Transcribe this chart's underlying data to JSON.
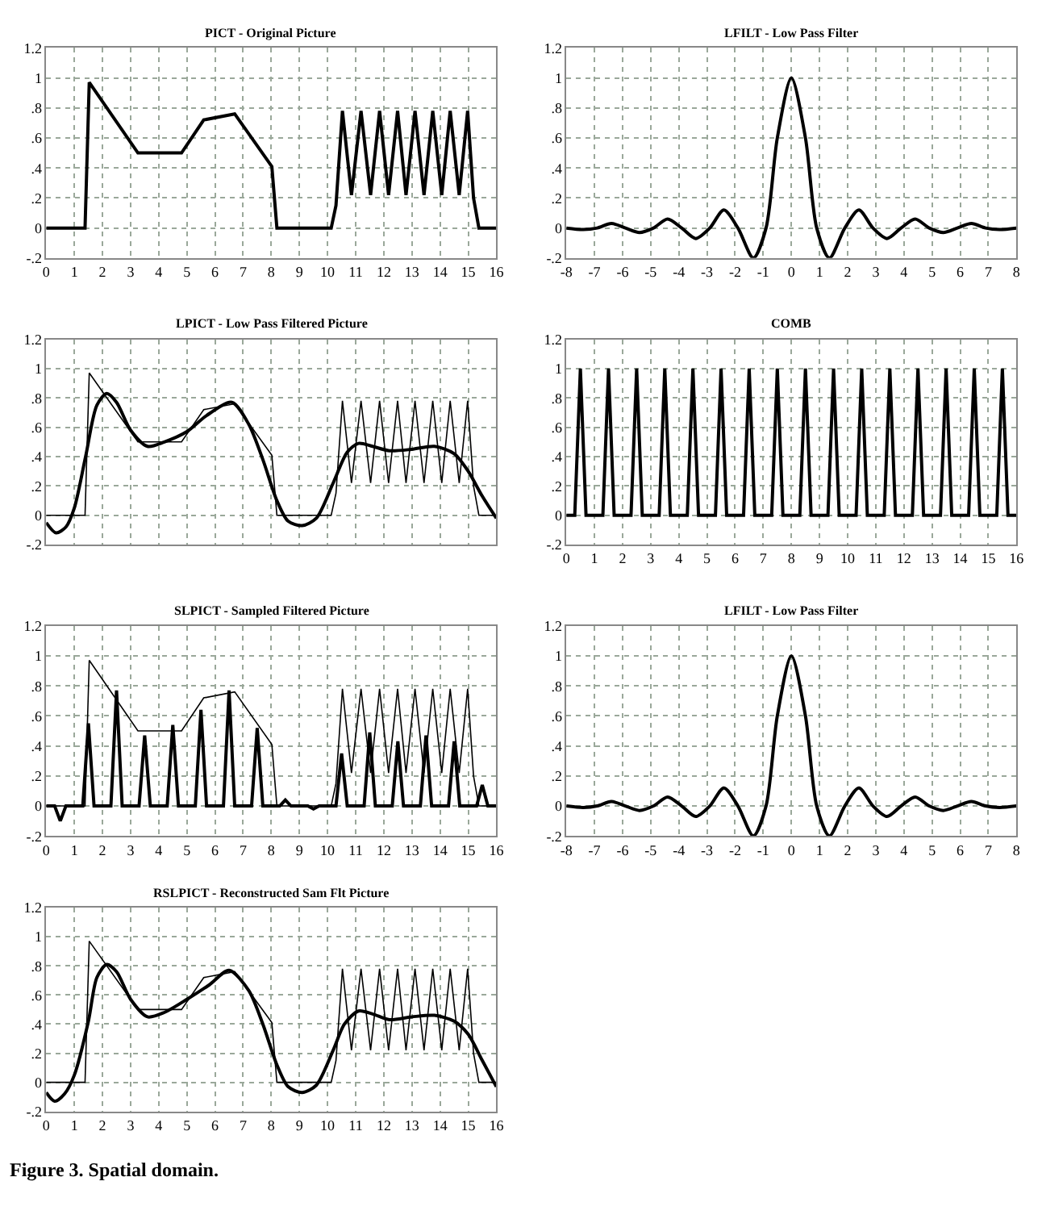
{
  "chart_data": [
    {
      "type": "line",
      "title": "PICT - Original Picture",
      "xlim": [
        0,
        16
      ],
      "xticks": [
        0,
        1,
        2,
        3,
        4,
        5,
        6,
        7,
        8,
        9,
        10,
        11,
        12,
        13,
        14,
        15,
        16
      ],
      "ylim": [
        -0.2,
        1.2
      ],
      "yticks": [
        {
          "value": -0.2,
          "label": "-.2"
        },
        0,
        {
          "value": 0.2,
          "label": ".2"
        },
        {
          "value": 0.4,
          "label": ".4"
        },
        {
          "value": 0.6,
          "label": ".6"
        },
        {
          "value": 0.8,
          "label": ".8"
        },
        1,
        1.2
      ],
      "grid": true,
      "series": [
        {
          "color": "#000000",
          "x": [
            0,
            1.38,
            1.53,
            3.26,
            4.81,
            5.6,
            6.7,
            8.02,
            8.2,
            10.13,
            10.3,
            10.53,
            10.85,
            11.19,
            11.53,
            11.85,
            12.17,
            12.49,
            12.79,
            13.11,
            13.43,
            13.74,
            14.06,
            14.36,
            14.68,
            14.98,
            15.19,
            15.38,
            16
          ],
          "values": [
            0,
            0,
            0.97,
            0.5,
            0.5,
            0.72,
            0.76,
            0.41,
            0,
            0,
            0.15,
            0.78,
            0.22,
            0.78,
            0.22,
            0.78,
            0.22,
            0.78,
            0.22,
            0.78,
            0.22,
            0.78,
            0.22,
            0.78,
            0.22,
            0.78,
            0.2,
            0,
            0
          ]
        }
      ]
    },
    {
      "type": "line",
      "title": "LFILT - Low Pass Filter",
      "xlim": [
        -8,
        8
      ],
      "xticks": [
        -8,
        -7,
        -6,
        -5,
        -4,
        -3,
        -2,
        -1,
        0,
        1,
        2,
        3,
        4,
        5,
        6,
        7,
        8
      ],
      "ylim": [
        -0.2,
        1.2
      ],
      "yticks": [
        {
          "value": -0.2,
          "label": "-.2"
        },
        0,
        {
          "value": 0.2,
          "label": ".2"
        },
        {
          "value": 0.4,
          "label": ".4"
        },
        {
          "value": 0.6,
          "label": ".6"
        },
        {
          "value": 0.8,
          "label": ".8"
        },
        1,
        1.2
      ],
      "grid": true,
      "series": [
        {
          "color": "#000000",
          "x": [
            -8,
            -7.4,
            -6.9,
            -6.4,
            -5.9,
            -5.4,
            -4.9,
            -4.4,
            -3.9,
            -3.4,
            -2.9,
            -2.4,
            -1.9,
            -1.35,
            -0.9,
            -0.5,
            0,
            0.5,
            0.9,
            1.35,
            1.9,
            2.4,
            2.9,
            3.4,
            3.9,
            4.4,
            4.9,
            5.4,
            5.9,
            6.4,
            6.9,
            7.4,
            8
          ],
          "values": [
            0,
            -0.01,
            0,
            0.03,
            0,
            -0.03,
            0,
            0.06,
            0,
            -0.07,
            0,
            0.12,
            0,
            -0.2,
            0,
            0.6,
            1,
            0.6,
            0,
            -0.2,
            0,
            0.12,
            0,
            -0.07,
            0,
            0.06,
            0,
            -0.03,
            0,
            0.03,
            0,
            -0.01,
            0
          ]
        }
      ]
    },
    {
      "type": "line",
      "title": "LPICT - Low Pass Filtered Picture",
      "xlim": [
        0,
        16
      ],
      "xticks": [
        0,
        1,
        2,
        3,
        4,
        5,
        6,
        7,
        8,
        9,
        10,
        11,
        12,
        13,
        14,
        15,
        16
      ],
      "ylim": [
        -0.2,
        1.2
      ],
      "yticks": [
        {
          "value": -0.2,
          "label": "-.2"
        },
        0,
        {
          "value": 0.2,
          "label": ".2"
        },
        {
          "value": 0.4,
          "label": ".4"
        },
        {
          "value": 0.6,
          "label": ".6"
        },
        {
          "value": 0.8,
          "label": ".8"
        },
        1,
        1.2
      ],
      "grid": true,
      "tick_labels": "y",
      "series": [
        {
          "color": "#000000",
          "x": [
            0,
            1.38,
            1.53,
            3.26,
            4.81,
            5.6,
            6.7,
            8.02,
            8.2,
            10.13,
            10.3,
            10.53,
            10.85,
            11.19,
            11.53,
            11.85,
            12.17,
            12.49,
            12.79,
            13.11,
            13.43,
            13.74,
            14.06,
            14.36,
            14.68,
            14.98,
            15.19,
            15.38,
            16
          ],
          "values": [
            0,
            0,
            0.97,
            0.5,
            0.5,
            0.72,
            0.76,
            0.41,
            0,
            0,
            0.15,
            0.78,
            0.22,
            0.78,
            0.22,
            0.78,
            0.22,
            0.78,
            0.22,
            0.78,
            0.22,
            0.78,
            0.22,
            0.78,
            0.22,
            0.78,
            0.2,
            0,
            0
          ]
        },
        {
          "color": "#000000",
          "x": [
            0,
            0.35,
            0.7,
            1.0,
            1.4,
            1.8,
            2.15,
            2.5,
            3.0,
            3.6,
            4.2,
            5.0,
            5.7,
            6.6,
            7.2,
            7.7,
            8.2,
            8.6,
            9.1,
            9.6,
            10.2,
            10.7,
            11.1,
            11.6,
            12.2,
            13.0,
            13.8,
            14.5,
            15.0,
            15.5,
            16
          ],
          "values": [
            -0.05,
            -0.12,
            -0.08,
            0.05,
            0.4,
            0.75,
            0.83,
            0.77,
            0.58,
            0.47,
            0.5,
            0.57,
            0.68,
            0.77,
            0.62,
            0.38,
            0.1,
            -0.04,
            -0.07,
            -0.02,
            0.22,
            0.43,
            0.49,
            0.47,
            0.44,
            0.45,
            0.47,
            0.42,
            0.3,
            0.13,
            -0.02
          ]
        }
      ]
    },
    {
      "type": "line",
      "title": "COMB",
      "xlim": [
        0,
        16
      ],
      "xticks": [
        0,
        1,
        2,
        3,
        4,
        5,
        6,
        7,
        8,
        9,
        10,
        11,
        12,
        13,
        14,
        15,
        16
      ],
      "ylim": [
        -0.2,
        1.2
      ],
      "yticks": [
        {
          "value": -0.2,
          "label": "-.2"
        },
        0,
        {
          "value": 0.2,
          "label": ".2"
        },
        {
          "value": 0.4,
          "label": ".4"
        },
        {
          "value": 0.6,
          "label": ".6"
        },
        {
          "value": 0.8,
          "label": ".8"
        },
        1,
        1.2
      ],
      "grid": true,
      "series": [
        {
          "color": "#000000",
          "x": [
            0,
            0.3,
            0.5,
            0.7,
            1.3,
            1.5,
            1.7,
            2.3,
            2.5,
            2.7,
            3.3,
            3.5,
            3.7,
            4.3,
            4.5,
            4.7,
            5.3,
            5.5,
            5.7,
            6.3,
            6.5,
            6.7,
            7.3,
            7.5,
            7.7,
            8.3,
            8.5,
            8.7,
            9.3,
            9.5,
            9.7,
            10.3,
            10.5,
            10.7,
            11.3,
            11.5,
            11.7,
            12.3,
            12.5,
            12.7,
            13.3,
            13.5,
            13.7,
            14.3,
            14.5,
            14.7,
            15.3,
            15.5,
            15.7,
            16
          ],
          "values": [
            0,
            0,
            1,
            0,
            0,
            1,
            0,
            0,
            1,
            0,
            0,
            1,
            0,
            0,
            1,
            0,
            0,
            1,
            0,
            0,
            1,
            0,
            0,
            1,
            0,
            0,
            1,
            0,
            0,
            1,
            0,
            0,
            1,
            0,
            0,
            1,
            0,
            0,
            1,
            0,
            0,
            1,
            0,
            0,
            1,
            0,
            0,
            1,
            0,
            0
          ]
        }
      ]
    },
    {
      "type": "line",
      "title": "SLPICT - Sampled Filtered Picture",
      "xlim": [
        0,
        16
      ],
      "xticks": [
        0,
        1,
        2,
        3,
        4,
        5,
        6,
        7,
        8,
        9,
        10,
        11,
        12,
        13,
        14,
        15,
        16
      ],
      "ylim": [
        -0.2,
        1.2
      ],
      "yticks": [
        {
          "value": -0.2,
          "label": "-.2"
        },
        0,
        {
          "value": 0.2,
          "label": ".2"
        },
        {
          "value": 0.4,
          "label": ".4"
        },
        {
          "value": 0.6,
          "label": ".6"
        },
        {
          "value": 0.8,
          "label": ".8"
        },
        1,
        1.2
      ],
      "grid": true,
      "series": [
        {
          "color": "#000000",
          "x": [
            0,
            1.38,
            1.53,
            3.26,
            4.81,
            5.6,
            6.7,
            8.02,
            8.2,
            10.13,
            10.3,
            10.53,
            10.85,
            11.19,
            11.53,
            11.85,
            12.17,
            12.49,
            12.79,
            13.11,
            13.43,
            13.74,
            14.06,
            14.36,
            14.68,
            14.98,
            15.19,
            15.38,
            16
          ],
          "values": [
            0,
            0,
            0.97,
            0.5,
            0.5,
            0.72,
            0.76,
            0.41,
            0,
            0,
            0.15,
            0.78,
            0.22,
            0.78,
            0.22,
            0.78,
            0.22,
            0.78,
            0.22,
            0.78,
            0.22,
            0.78,
            0.22,
            0.78,
            0.22,
            0.78,
            0.2,
            0,
            0
          ]
        },
        {
          "color": "#000000",
          "x": [
            0,
            0.3,
            0.5,
            0.7,
            1.3,
            1.5,
            1.7,
            2.3,
            2.5,
            2.7,
            3.3,
            3.5,
            3.7,
            4.3,
            4.5,
            4.7,
            5.3,
            5.5,
            5.7,
            6.3,
            6.5,
            6.7,
            7.3,
            7.5,
            7.7,
            8.3,
            8.5,
            8.7,
            9.3,
            9.5,
            9.7,
            10.3,
            10.5,
            10.7,
            11.3,
            11.5,
            11.7,
            12.3,
            12.5,
            12.7,
            13.3,
            13.5,
            13.7,
            14.3,
            14.5,
            14.7,
            15.3,
            15.5,
            15.7,
            16
          ],
          "values": [
            0,
            0,
            -0.1,
            0,
            0,
            0.55,
            0,
            0,
            0.77,
            0,
            0,
            0.47,
            0,
            0,
            0.54,
            0,
            0,
            0.64,
            0,
            0,
            0.77,
            0,
            0,
            0.52,
            0,
            0,
            0.04,
            0,
            0,
            -0.02,
            0,
            0,
            0.35,
            0,
            0,
            0.49,
            0,
            0,
            0.43,
            0,
            0,
            0.47,
            0,
            0,
            0.43,
            0,
            0,
            0.14,
            0,
            0
          ]
        }
      ]
    },
    {
      "type": "line",
      "title": "LFILT - Low Pass Filter",
      "xlim": [
        -8,
        8
      ],
      "xticks": [
        -8,
        -7,
        -6,
        -5,
        -4,
        -3,
        -2,
        -1,
        0,
        1,
        2,
        3,
        4,
        5,
        6,
        7,
        8
      ],
      "ylim": [
        -0.2,
        1.2
      ],
      "yticks": [
        {
          "value": -0.2,
          "label": "-.2"
        },
        0,
        {
          "value": 0.2,
          "label": ".2"
        },
        {
          "value": 0.4,
          "label": ".4"
        },
        {
          "value": 0.6,
          "label": ".6"
        },
        {
          "value": 0.8,
          "label": ".8"
        },
        1,
        1.2
      ],
      "grid": true,
      "series": [
        {
          "color": "#000000",
          "x": [
            -8,
            -7.4,
            -6.9,
            -6.4,
            -5.9,
            -5.4,
            -4.9,
            -4.4,
            -3.9,
            -3.4,
            -2.9,
            -2.4,
            -1.9,
            -1.35,
            -0.9,
            -0.5,
            0,
            0.5,
            0.9,
            1.35,
            1.9,
            2.4,
            2.9,
            3.4,
            3.9,
            4.4,
            4.9,
            5.4,
            5.9,
            6.4,
            6.9,
            7.4,
            8
          ],
          "values": [
            0,
            -0.01,
            0,
            0.03,
            0,
            -0.03,
            0,
            0.06,
            0,
            -0.07,
            0,
            0.12,
            0,
            -0.2,
            0,
            0.6,
            1,
            0.6,
            0,
            -0.2,
            0,
            0.12,
            0,
            -0.07,
            0,
            0.06,
            0,
            -0.03,
            0,
            0.03,
            0,
            -0.01,
            0
          ]
        }
      ]
    },
    {
      "type": "line",
      "title": "RSLPICT - Reconstructed Sam Flt Picture",
      "xlim": [
        0,
        16
      ],
      "xticks": [
        0,
        1,
        2,
        3,
        4,
        5,
        6,
        7,
        8,
        9,
        10,
        11,
        12,
        13,
        14,
        15,
        16
      ],
      "ylim": [
        -0.2,
        1.2
      ],
      "yticks": [
        {
          "value": -0.2,
          "label": "-.2"
        },
        0,
        {
          "value": 0.2,
          "label": ".2"
        },
        {
          "value": 0.4,
          "label": ".4"
        },
        {
          "value": 0.6,
          "label": ".6"
        },
        {
          "value": 0.8,
          "label": ".8"
        },
        1,
        1.2
      ],
      "grid": true,
      "annotations": [
        "Figure 3. Spatial domain."
      ],
      "series": [
        {
          "color": "#000000",
          "x": [
            0,
            1.38,
            1.53,
            3.26,
            4.81,
            5.6,
            6.7,
            8.02,
            8.2,
            10.13,
            10.3,
            10.53,
            10.85,
            11.19,
            11.53,
            11.85,
            12.17,
            12.49,
            12.79,
            13.11,
            13.43,
            13.74,
            14.06,
            14.36,
            14.68,
            14.98,
            15.19,
            15.38,
            16
          ],
          "values": [
            0,
            0,
            0.97,
            0.5,
            0.5,
            0.72,
            0.76,
            0.41,
            0,
            0,
            0.15,
            0.78,
            0.22,
            0.78,
            0.22,
            0.78,
            0.22,
            0.78,
            0.22,
            0.78,
            0.22,
            0.78,
            0.22,
            0.78,
            0.22,
            0.78,
            0.2,
            0,
            0
          ]
        },
        {
          "color": "#000000",
          "x": [
            0,
            0.3,
            0.65,
            1.0,
            1.5,
            1.8,
            2.15,
            2.5,
            3.0,
            3.6,
            4.2,
            5.0,
            5.8,
            6.5,
            7.2,
            7.7,
            8.2,
            8.6,
            9.1,
            9.6,
            10.2,
            10.6,
            11.1,
            11.6,
            12.2,
            13.0,
            13.8,
            14.5,
            15.0,
            15.5,
            16
          ],
          "values": [
            -0.07,
            -0.13,
            -0.08,
            0.05,
            0.42,
            0.72,
            0.81,
            0.76,
            0.57,
            0.45,
            0.48,
            0.57,
            0.67,
            0.77,
            0.63,
            0.4,
            0.12,
            -0.03,
            -0.07,
            -0.02,
            0.22,
            0.4,
            0.49,
            0.47,
            0.43,
            0.45,
            0.46,
            0.42,
            0.33,
            0.15,
            -0.03
          ]
        }
      ]
    }
  ]
}
